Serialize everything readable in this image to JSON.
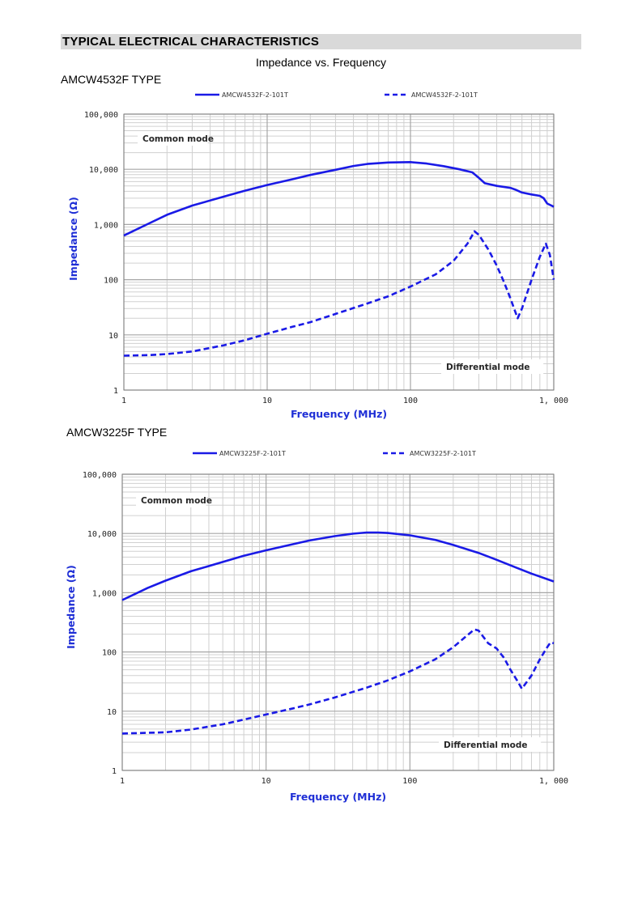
{
  "section_header": "TYPICAL ELECTRICAL CHARACTERISTICS",
  "page_title": "Impedance vs. Frequency",
  "colors": {
    "series": "#1a1ae6",
    "grid_major": "#a6a6a6",
    "grid_minor": "#d0d0d0",
    "axis_label": "#1f2fd6",
    "header_bg": "#d9d9d9"
  },
  "chart_data": [
    {
      "type": "line",
      "type_label": "AMCW4532F TYPE",
      "xlabel": "Frequency (MHz)",
      "ylabel": "Impedance (Ω)",
      "xscale": "log",
      "yscale": "log",
      "xlim": [
        1,
        1000
      ],
      "ylim": [
        1,
        100000
      ],
      "grid": true,
      "legend_position": "top",
      "x_ticks": [
        "1",
        "10",
        "100",
        "1, 000"
      ],
      "y_ticks": [
        "1",
        "10",
        "100",
        "1,000",
        "10,000",
        "100,000"
      ],
      "annotations": [
        "Common mode",
        "Differential mode"
      ],
      "series": [
        {
          "name": "AMCW4532F-2-101T",
          "style": "solid",
          "points": [
            [
              1,
              630
            ],
            [
              1.5,
              1050
            ],
            [
              2,
              1500
            ],
            [
              3,
              2200
            ],
            [
              5,
              3200
            ],
            [
              7,
              4100
            ],
            [
              10,
              5200
            ],
            [
              15,
              6600
            ],
            [
              20,
              7900
            ],
            [
              30,
              9800
            ],
            [
              40,
              11500
            ],
            [
              50,
              12500
            ],
            [
              70,
              13300
            ],
            [
              100,
              13500
            ],
            [
              130,
              12700
            ],
            [
              170,
              11400
            ],
            [
              220,
              10000
            ],
            [
              270,
              8800
            ],
            [
              300,
              7000
            ],
            [
              330,
              5600
            ],
            [
              400,
              5000
            ],
            [
              500,
              4600
            ],
            [
              550,
              4200
            ],
            [
              600,
              3800
            ],
            [
              700,
              3500
            ],
            [
              800,
              3300
            ],
            [
              850,
              3000
            ],
            [
              900,
              2400
            ],
            [
              1000,
              2100
            ]
          ]
        },
        {
          "name": "AMCW4532F-2-101T",
          "style": "dashed",
          "points": [
            [
              1,
              4.2
            ],
            [
              1.5,
              4.3
            ],
            [
              2,
              4.5
            ],
            [
              3,
              5
            ],
            [
              5,
              6.5
            ],
            [
              7,
              8
            ],
            [
              10,
              10.5
            ],
            [
              15,
              14
            ],
            [
              20,
              17
            ],
            [
              30,
              24
            ],
            [
              50,
              37
            ],
            [
              70,
              50
            ],
            [
              100,
              75
            ],
            [
              150,
              125
            ],
            [
              200,
              220
            ],
            [
              250,
              450
            ],
            [
              280,
              750
            ],
            [
              300,
              650
            ],
            [
              350,
              350
            ],
            [
              400,
              180
            ],
            [
              450,
              90
            ],
            [
              500,
              45
            ],
            [
              560,
              20
            ],
            [
              600,
              30
            ],
            [
              700,
              100
            ],
            [
              800,
              260
            ],
            [
              880,
              450
            ],
            [
              940,
              280
            ],
            [
              1000,
              100
            ]
          ]
        }
      ]
    },
    {
      "type": "line",
      "type_label": "AMCW3225F TYPE",
      "xlabel": "Frequency (MHz)",
      "ylabel": "Impedance (Ω)",
      "xscale": "log",
      "yscale": "log",
      "xlim": [
        1,
        1000
      ],
      "ylim": [
        1,
        100000
      ],
      "grid": true,
      "legend_position": "top",
      "x_ticks": [
        "1",
        "10",
        "100",
        "1, 000"
      ],
      "y_ticks": [
        "1",
        "10",
        "100",
        "1,000",
        "10,000",
        "100,000"
      ],
      "annotations": [
        "Common mode",
        "Differential mode"
      ],
      "series": [
        {
          "name": "AMCW3225F-2-101T",
          "style": "solid",
          "points": [
            [
              1,
              750
            ],
            [
              1.5,
              1200
            ],
            [
              2,
              1600
            ],
            [
              3,
              2300
            ],
            [
              5,
              3300
            ],
            [
              7,
              4200
            ],
            [
              10,
              5200
            ],
            [
              15,
              6500
            ],
            [
              20,
              7600
            ],
            [
              30,
              9000
            ],
            [
              40,
              9900
            ],
            [
              50,
              10400
            ],
            [
              60,
              10400
            ],
            [
              70,
              10200
            ],
            [
              100,
              9300
            ],
            [
              150,
              7800
            ],
            [
              200,
              6400
            ],
            [
              300,
              4700
            ],
            [
              400,
              3600
            ],
            [
              500,
              2900
            ],
            [
              700,
              2100
            ],
            [
              1000,
              1550
            ]
          ]
        },
        {
          "name": "AMCW3225F-2-101T",
          "style": "dashed",
          "points": [
            [
              1,
              4.2
            ],
            [
              2,
              4.4
            ],
            [
              3,
              4.9
            ],
            [
              5,
              6
            ],
            [
              7,
              7.2
            ],
            [
              10,
              8.8
            ],
            [
              15,
              11
            ],
            [
              20,
              13
            ],
            [
              30,
              17
            ],
            [
              50,
              25
            ],
            [
              70,
              33
            ],
            [
              100,
              47
            ],
            [
              150,
              75
            ],
            [
              200,
              120
            ],
            [
              250,
              190
            ],
            [
              280,
              240
            ],
            [
              300,
              230
            ],
            [
              350,
              140
            ],
            [
              400,
              115
            ],
            [
              450,
              80
            ],
            [
              500,
              50
            ],
            [
              560,
              32
            ],
            [
              600,
              24
            ],
            [
              700,
              40
            ],
            [
              800,
              75
            ],
            [
              900,
              120
            ],
            [
              950,
              145
            ],
            [
              1000,
              140
            ]
          ]
        }
      ]
    }
  ]
}
